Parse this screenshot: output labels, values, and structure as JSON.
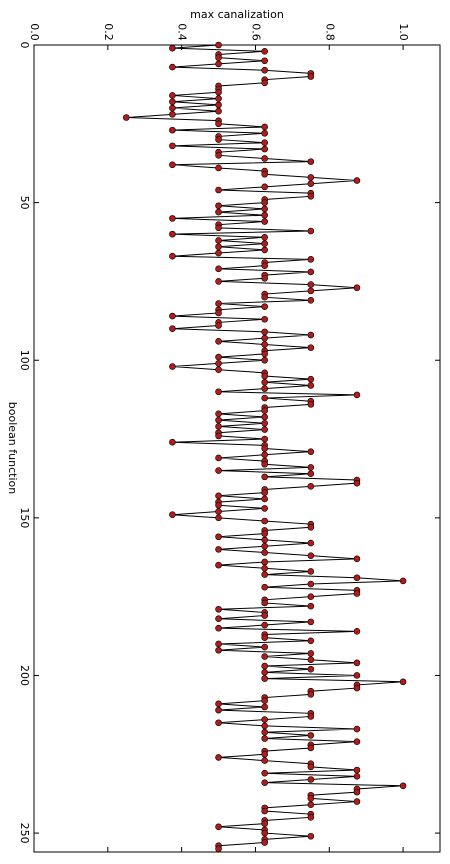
{
  "chart_data": {
    "type": "line",
    "xlabel": "boolean function",
    "ylabel": "max canalization",
    "color": "#000000",
    "marker_color": "#b01c1c",
    "x": [
      0,
      1,
      2,
      3,
      4,
      5,
      6,
      7,
      8,
      9,
      10,
      11,
      12,
      13,
      14,
      15,
      16,
      17,
      18,
      19,
      20,
      21,
      22,
      23,
      24,
      25,
      26,
      27,
      28,
      29,
      30,
      31,
      32,
      33,
      34,
      35,
      36,
      37,
      38,
      39,
      40,
      41,
      42,
      43,
      44,
      45,
      46,
      47,
      48,
      49,
      50,
      51,
      52,
      53,
      54,
      55,
      56,
      57,
      58,
      59,
      60,
      61,
      62,
      63,
      64,
      65,
      66,
      67,
      68,
      69,
      70,
      71,
      72,
      73,
      74,
      75,
      76,
      77,
      78,
      79,
      80,
      81,
      82,
      83,
      84,
      85,
      86,
      87,
      88,
      89,
      90,
      91,
      92,
      93,
      94,
      95,
      96,
      97,
      98,
      99,
      100,
      101,
      102,
      103,
      104,
      105,
      106,
      107,
      108,
      109,
      110,
      111,
      112,
      113,
      114,
      115,
      116,
      117,
      118,
      119,
      120,
      121,
      122,
      123,
      124,
      125,
      126,
      127,
      128,
      129,
      130,
      131,
      132,
      133,
      134,
      135,
      136,
      137,
      138,
      139,
      140,
      141,
      142,
      143,
      144,
      145,
      146,
      147,
      148,
      149,
      150,
      151,
      152,
      153,
      154,
      155,
      156,
      157,
      158,
      159,
      160,
      161,
      162,
      163,
      164,
      165,
      166,
      167,
      168,
      169,
      170,
      171,
      172,
      173,
      174,
      175,
      176,
      177,
      178,
      179,
      180,
      181,
      182,
      183,
      184,
      185,
      186,
      187,
      188,
      189,
      190,
      191,
      192,
      193,
      194,
      195,
      196,
      197,
      198,
      199,
      200,
      201,
      202,
      203,
      204,
      205,
      206,
      207,
      208,
      209,
      210,
      211,
      212,
      213,
      214,
      215,
      216,
      217,
      218,
      219,
      220,
      221,
      222,
      223,
      224,
      225,
      226,
      227,
      228,
      229,
      230,
      231,
      232,
      233,
      234,
      235,
      236,
      237,
      238,
      239,
      240,
      241,
      242,
      243,
      244,
      245,
      246,
      247,
      248,
      249,
      250,
      251,
      252,
      253,
      254,
      255
    ],
    "values": [
      0.5,
      0.375,
      0.625,
      0.5,
      0.5,
      0.625,
      0.5,
      0.375,
      0.625,
      0.75,
      0.75,
      0.625,
      0.625,
      0.5,
      0.5,
      0.5,
      0.375,
      0.5,
      0.375,
      0.5,
      0.375,
      0.5,
      0.375,
      0.25,
      0.5,
      0.5,
      0.625,
      0.375,
      0.625,
      0.5,
      0.5,
      0.625,
      0.375,
      0.625,
      0.5,
      0.5,
      0.625,
      0.75,
      0.375,
      0.5,
      0.625,
      0.625,
      0.75,
      0.875,
      0.75,
      0.625,
      0.5,
      0.75,
      0.75,
      0.625,
      0.625,
      0.5,
      0.625,
      0.5,
      0.625,
      0.375,
      0.625,
      0.5,
      0.5,
      0.75,
      0.375,
      0.625,
      0.5,
      0.625,
      0.5,
      0.625,
      0.5,
      0.375,
      0.75,
      0.625,
      0.625,
      0.5,
      0.75,
      0.625,
      0.625,
      0.5,
      0.75,
      0.875,
      0.75,
      0.625,
      0.625,
      0.75,
      0.5,
      0.625,
      0.5,
      0.5,
      0.375,
      0.625,
      0.5,
      0.5,
      0.375,
      0.625,
      0.75,
      0.625,
      0.5,
      0.625,
      0.75,
      0.625,
      0.625,
      0.5,
      0.625,
      0.5,
      0.375,
      0.5,
      0.625,
      0.625,
      0.75,
      0.625,
      0.75,
      0.625,
      0.5,
      0.875,
      0.625,
      0.75,
      0.75,
      0.625,
      0.625,
      0.5,
      0.625,
      0.5,
      0.625,
      0.5,
      0.625,
      0.5,
      0.5,
      0.625,
      0.375,
      0.625,
      0.625,
      0.75,
      0.625,
      0.5,
      0.625,
      0.625,
      0.75,
      0.5,
      0.75,
      0.625,
      0.875,
      0.875,
      0.75,
      0.625,
      0.625,
      0.5,
      0.625,
      0.5,
      0.5,
      0.625,
      0.5,
      0.375,
      0.5,
      0.625,
      0.75,
      0.75,
      0.625,
      0.625,
      0.5,
      0.625,
      0.75,
      0.625,
      0.5,
      0.625,
      0.75,
      0.875,
      0.625,
      0.5,
      0.625,
      0.75,
      0.625,
      0.875,
      1.0,
      0.75,
      0.625,
      0.875,
      0.875,
      0.75,
      0.625,
      0.625,
      0.75,
      0.5,
      0.625,
      0.625,
      0.5,
      0.75,
      0.625,
      0.5,
      0.875,
      0.625,
      0.625,
      0.75,
      0.5,
      0.625,
      0.5,
      0.75,
      0.625,
      0.75,
      0.875,
      0.625,
      0.75,
      0.625,
      0.875,
      0.625,
      1.0,
      0.875,
      0.875,
      0.75,
      0.75,
      0.625,
      0.625,
      0.5,
      0.625,
      0.5,
      0.75,
      0.75,
      0.625,
      0.5,
      0.625,
      0.875,
      0.625,
      0.75,
      0.625,
      0.875,
      0.75,
      0.75,
      0.625,
      0.625,
      0.5,
      0.625,
      0.75,
      0.75,
      0.875,
      0.625,
      0.875,
      0.75,
      0.625,
      1.0,
      0.875,
      0.875,
      0.75,
      0.75,
      0.875,
      0.75,
      0.625,
      0.625,
      0.75,
      0.75,
      0.625,
      0.625,
      0.5,
      0.625,
      0.625,
      0.75,
      0.625,
      0.625,
      0.5,
      0.5
    ],
    "xlim": [
      0,
      256
    ],
    "xticks": [
      0,
      50,
      100,
      150,
      200,
      250
    ],
    "ylim": [
      0,
      1.1
    ],
    "yticks": [
      {
        "value": 0,
        "label": "0.0"
      },
      0.2,
      0.4,
      0.6,
      0.8,
      {
        "value": 1,
        "label": "1.0"
      }
    ]
  }
}
